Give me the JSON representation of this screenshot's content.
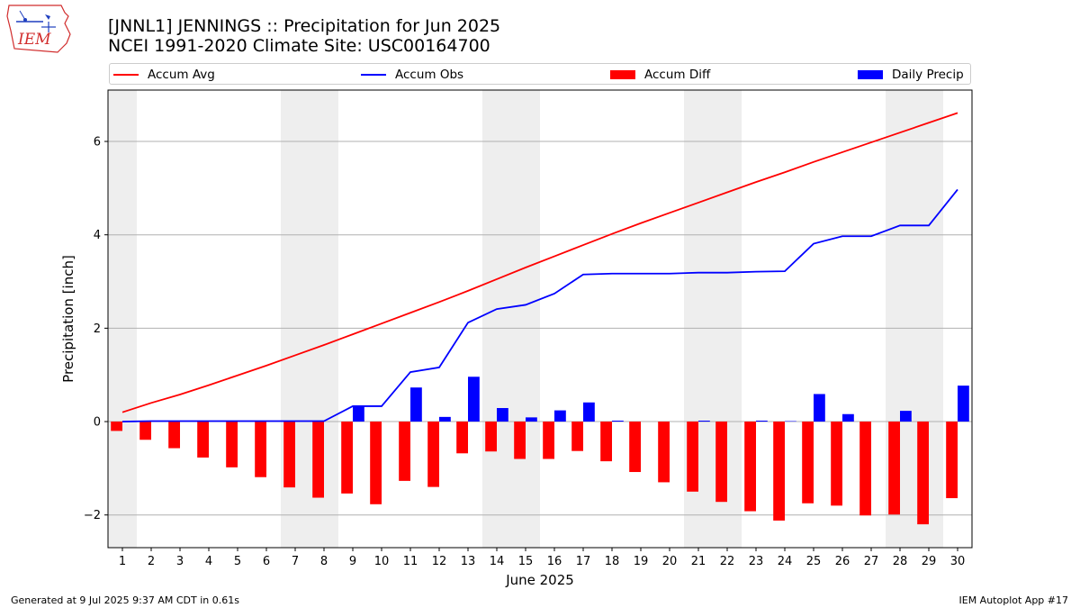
{
  "logo": {
    "text": "IEM"
  },
  "header": {
    "title_line1": "[JNNL1] JENNINGS :: Precipitation for Jun 2025",
    "title_line2": "NCEI 1991-2020 Climate Site: USC00164700"
  },
  "legend": {
    "items": [
      {
        "label": "Accum Avg",
        "color": "#ff0000",
        "kind": "line"
      },
      {
        "label": "Accum Obs",
        "color": "#0000ff",
        "kind": "line"
      },
      {
        "label": "Accum Diff",
        "color": "#ff0000",
        "kind": "bar"
      },
      {
        "label": "Daily Precip",
        "color": "#0000ff",
        "kind": "bar"
      }
    ]
  },
  "footer": {
    "left": "Generated at 9 Jul 2025 9:37 AM CDT in 0.61s",
    "right": "IEM Autoplot App #17"
  },
  "chart_data": {
    "type": "bar",
    "xlabel": "June 2025",
    "ylabel": "Precipitation [inch]",
    "x": [
      1,
      2,
      3,
      4,
      5,
      6,
      7,
      8,
      9,
      10,
      11,
      12,
      13,
      14,
      15,
      16,
      17,
      18,
      19,
      20,
      21,
      22,
      23,
      24,
      25,
      26,
      27,
      28,
      29,
      30
    ],
    "xlim": [
      0.5,
      30.5
    ],
    "ylim": [
      -2.7,
      7.1
    ],
    "yticks": [
      -2,
      0,
      2,
      4,
      6
    ],
    "grid": "y",
    "legend_position": "top",
    "weekend_shading": [
      [
        0.5,
        1.5
      ],
      [
        6.5,
        8.5
      ],
      [
        13.5,
        15.5
      ],
      [
        20.5,
        22.5
      ],
      [
        27.5,
        29.5
      ]
    ],
    "shading_color": "#eeeeee",
    "series": [
      {
        "name": "Accum Avg",
        "type": "line",
        "color": "#ff0000",
        "values": [
          0.2,
          0.4,
          0.58,
          0.78,
          0.99,
          1.2,
          1.42,
          1.64,
          1.87,
          2.1,
          2.33,
          2.56,
          2.8,
          3.05,
          3.3,
          3.54,
          3.78,
          4.02,
          4.25,
          4.47,
          4.69,
          4.91,
          5.13,
          5.34,
          5.56,
          5.77,
          5.98,
          6.19,
          6.4,
          6.61
        ]
      },
      {
        "name": "Accum Obs",
        "type": "line",
        "color": "#0000ff",
        "values": [
          0.0,
          0.01,
          0.01,
          0.01,
          0.01,
          0.01,
          0.01,
          0.01,
          0.33,
          0.33,
          1.06,
          1.16,
          2.12,
          2.41,
          2.5,
          2.74,
          3.15,
          3.17,
          3.17,
          3.17,
          3.19,
          3.19,
          3.21,
          3.22,
          3.81,
          3.97,
          3.97,
          4.2,
          4.2,
          4.97
        ]
      },
      {
        "name": "Accum Diff",
        "type": "bar",
        "color": "#ff0000",
        "values": [
          -0.2,
          -0.39,
          -0.57,
          -0.77,
          -0.98,
          -1.19,
          -1.41,
          -1.63,
          -1.54,
          -1.77,
          -1.27,
          -1.4,
          -0.68,
          -0.64,
          -0.8,
          -0.8,
          -0.63,
          -0.85,
          -1.08,
          -1.3,
          -1.5,
          -1.72,
          -1.92,
          -2.12,
          -1.75,
          -1.8,
          -2.01,
          -1.99,
          -2.2,
          -1.64
        ]
      },
      {
        "name": "Daily Precip",
        "type": "bar",
        "color": "#0000ff",
        "values": [
          0.0,
          0.01,
          0.0,
          0.0,
          0.0,
          0.0,
          0.0,
          0.0,
          0.32,
          0.0,
          0.73,
          0.1,
          0.96,
          0.29,
          0.09,
          0.24,
          0.41,
          0.02,
          0.0,
          0.0,
          0.02,
          0.0,
          0.02,
          0.01,
          0.59,
          0.16,
          0.0,
          0.23,
          0.0,
          0.77
        ]
      }
    ]
  }
}
